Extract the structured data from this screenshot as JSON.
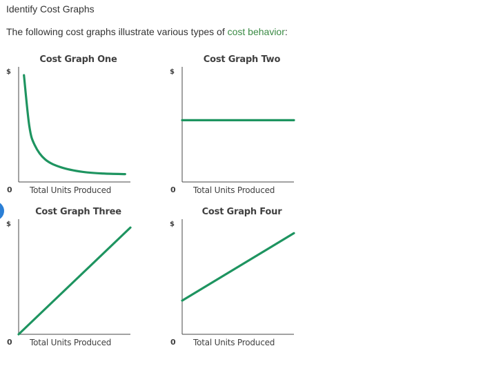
{
  "page": {
    "heading": "Identify Cost Graphs",
    "intro_before": "The following cost graphs illustrate various types of ",
    "intro_link": "cost behavior",
    "intro_after": ":"
  },
  "colors": {
    "line": "#1e9460",
    "axis": "#444444",
    "link": "#3a8a44"
  },
  "chart_data": [
    {
      "type": "line",
      "title": "Cost Graph One",
      "ylabel": "$",
      "xlabel": "Total Units Produced",
      "origin_label": "0",
      "shape": "decreasing curve",
      "x": [
        0.05,
        0.1,
        0.15,
        0.25,
        0.4,
        0.6,
        0.8,
        1.0
      ],
      "y": [
        0.95,
        0.5,
        0.33,
        0.2,
        0.13,
        0.09,
        0.075,
        0.07
      ],
      "xlim": [
        0,
        1.05
      ],
      "ylim": [
        0,
        1
      ]
    },
    {
      "type": "line",
      "title": "Cost Graph Two",
      "ylabel": "$",
      "xlabel": "Total Units Produced",
      "origin_label": "0",
      "shape": "horizontal line",
      "x": [
        0,
        1.0
      ],
      "y": [
        0.55,
        0.55
      ],
      "xlim": [
        0,
        1.0
      ],
      "ylim": [
        0,
        1
      ]
    },
    {
      "type": "line",
      "title": "Cost Graph Three",
      "ylabel": "$",
      "xlabel": "Total Units Produced",
      "origin_label": "0",
      "shape": "straight line from origin",
      "x": [
        0,
        1.0
      ],
      "y": [
        0,
        0.95
      ],
      "xlim": [
        0,
        1.0
      ],
      "ylim": [
        0,
        1
      ]
    },
    {
      "type": "line",
      "title": "Cost Graph Four",
      "ylabel": "$",
      "xlabel": "Total Units Produced",
      "origin_label": "0",
      "shape": "straight line with positive intercept",
      "x": [
        0,
        1.0
      ],
      "y": [
        0.3,
        0.9
      ],
      "xlim": [
        0,
        1.0
      ],
      "ylim": [
        0,
        1
      ]
    }
  ]
}
